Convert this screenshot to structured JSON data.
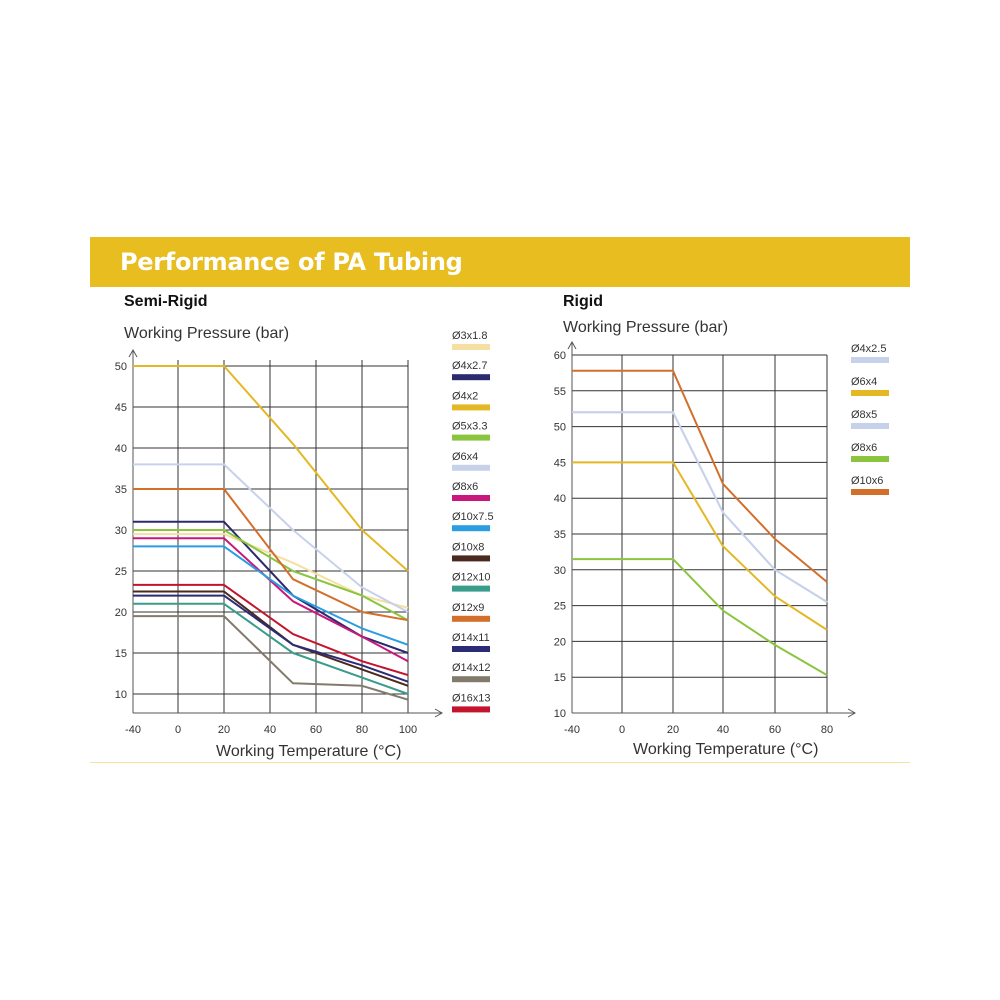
{
  "header": {
    "title": "Performance of PA Tubing"
  },
  "chart_data": [
    {
      "type": "line",
      "title": "Semi-Rigid",
      "ylabel": "Working Pressure (bar)",
      "xlabel": "Working Temperature (°C)",
      "xlim": [
        -40,
        100
      ],
      "ylim": [
        7,
        50
      ],
      "x_ticks": [
        -40,
        0,
        20,
        40,
        60,
        80,
        100
      ],
      "y_ticks": [
        10,
        15,
        20,
        25,
        30,
        35,
        40,
        45,
        50
      ],
      "grid": true,
      "legend": "right",
      "series": [
        {
          "name": "Ø3x1.8",
          "color": "#f5dfa2",
          "x": [
            -40,
            20,
            50,
            80,
            100
          ],
          "y": [
            29.5,
            29.5,
            26,
            22,
            20.5
          ]
        },
        {
          "name": "Ø4x2.7",
          "color": "#2b2a6e",
          "x": [
            -40,
            20,
            50,
            80,
            100
          ],
          "y": [
            31,
            31,
            22,
            17,
            15
          ]
        },
        {
          "name": "Ø4x2",
          "color": "#e4b724",
          "x": [
            -40,
            20,
            50,
            80,
            100
          ],
          "y": [
            50,
            50,
            40.5,
            30,
            25
          ]
        },
        {
          "name": "Ø5x3.3",
          "color": "#8bc53f",
          "x": [
            -40,
            20,
            50,
            80,
            100
          ],
          "y": [
            30,
            30,
            25,
            22,
            19
          ]
        },
        {
          "name": "Ø6x4",
          "color": "#c7d2ea",
          "x": [
            -40,
            20,
            50,
            80,
            100
          ],
          "y": [
            38,
            38,
            30,
            23,
            20
          ]
        },
        {
          "name": "Ø8x6",
          "color": "#c8187d",
          "x": [
            -40,
            20,
            50,
            80,
            100
          ],
          "y": [
            29,
            29,
            21.3,
            17,
            14
          ]
        },
        {
          "name": "Ø10x7.5",
          "color": "#2a9ee0",
          "x": [
            -40,
            20,
            50,
            80,
            100
          ],
          "y": [
            28,
            28,
            22,
            18,
            16
          ]
        },
        {
          "name": "Ø10x8",
          "color": "#4a2a1e",
          "x": [
            -40,
            20,
            50,
            80,
            100
          ],
          "y": [
            22.5,
            22.5,
            16,
            13,
            11
          ]
        },
        {
          "name": "Ø12x10",
          "color": "#3a9c8a",
          "x": [
            -40,
            20,
            50,
            80,
            100
          ],
          "y": [
            21,
            21,
            15,
            12,
            10
          ]
        },
        {
          "name": "Ø12x9",
          "color": "#d36f2b",
          "x": [
            -40,
            20,
            50,
            80,
            100
          ],
          "y": [
            35,
            35,
            24,
            20,
            19
          ]
        },
        {
          "name": "Ø14x11",
          "color": "#2c2b78",
          "x": [
            -40,
            20,
            50,
            80,
            100
          ],
          "y": [
            22,
            22,
            16,
            13.5,
            11.5
          ]
        },
        {
          "name": "Ø14x12",
          "color": "#827b6c",
          "x": [
            -40,
            20,
            50,
            80,
            100
          ],
          "y": [
            19.5,
            19.5,
            11.3,
            11,
            9.3
          ]
        },
        {
          "name": "Ø16x13",
          "color": "#c4132d",
          "x": [
            -40,
            20,
            50,
            80,
            100
          ],
          "y": [
            23.3,
            23.3,
            17.3,
            14,
            12.3
          ]
        }
      ]
    },
    {
      "type": "line",
      "title": "Rigid",
      "ylabel": "Working Pressure (bar)",
      "xlabel": "Working Temperature (°C)",
      "xlim": [
        -40,
        80
      ],
      "ylim": [
        10,
        60
      ],
      "x_ticks": [
        -40,
        0,
        20,
        40,
        60,
        80
      ],
      "y_ticks": [
        10,
        15,
        20,
        25,
        30,
        35,
        40,
        45,
        50,
        55,
        60
      ],
      "grid": true,
      "legend": "right",
      "series": [
        {
          "name": "Ø4x2.5",
          "color": "#c7d2ea",
          "x": [
            -40,
            20,
            40,
            60,
            80
          ],
          "y": [
            52,
            52,
            38,
            30,
            25.5
          ]
        },
        {
          "name": "Ø6x4",
          "color": "#e4b724",
          "x": [
            -40,
            20,
            40,
            60,
            80
          ],
          "y": [
            45,
            45,
            33.3,
            26.3,
            21.6
          ]
        },
        {
          "name": "Ø8x5",
          "color": "#c7d2ea",
          "x": [
            -40,
            20,
            40,
            60,
            80
          ],
          "y": [
            52,
            52,
            38,
            30,
            25.5
          ]
        },
        {
          "name": "Ø8x6",
          "color": "#8bc53f",
          "x": [
            -40,
            20,
            40,
            60,
            80
          ],
          "y": [
            31.5,
            31.5,
            24.3,
            19.5,
            15.3
          ]
        },
        {
          "name": "Ø10x6",
          "color": "#d36f2b",
          "x": [
            -40,
            20,
            40,
            60,
            80
          ],
          "y": [
            57.8,
            57.8,
            42,
            34.3,
            28.3
          ]
        }
      ]
    }
  ]
}
